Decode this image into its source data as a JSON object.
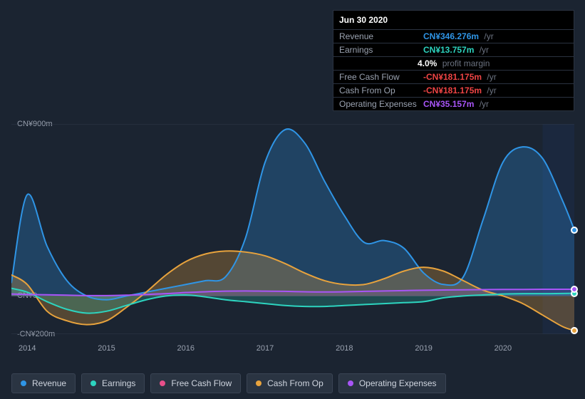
{
  "tooltip": {
    "date": "Jun 30 2020",
    "rows": [
      {
        "label": "Revenue",
        "value": "CN¥346.276m",
        "unit": "/yr",
        "color": "#2f95e6"
      },
      {
        "label": "Earnings",
        "value": "CN¥13.757m",
        "unit": "/yr",
        "color": "#2dd4bf"
      },
      {
        "label": "",
        "value": "4.0%",
        "unit": "profit margin",
        "color": "#ffffff"
      },
      {
        "label": "Free Cash Flow",
        "value": "-CN¥181.175m",
        "unit": "/yr",
        "color": "#ef4444"
      },
      {
        "label": "Cash From Op",
        "value": "-CN¥181.175m",
        "unit": "/yr",
        "color": "#ef4444"
      },
      {
        "label": "Operating Expenses",
        "value": "CN¥35.157m",
        "unit": "/yr",
        "color": "#a855f7"
      }
    ]
  },
  "chart": {
    "type": "area",
    "background_color": "#1b2431",
    "grid_color": "#323a49",
    "text_color": "#9aa2b0",
    "label_fontsize": 11,
    "xlim": [
      2013.8,
      2020.9
    ],
    "ylim": [
      -200,
      900
    ],
    "yticks": [
      {
        "v": 900,
        "label": "CN¥900m"
      },
      {
        "v": 0,
        "label": "CN¥0"
      },
      {
        "v": -200,
        "label": "-CN¥200m"
      }
    ],
    "xticks": [
      2014,
      2015,
      2016,
      2017,
      2018,
      2019,
      2020
    ],
    "x_values": [
      2013.8,
      2014.0,
      2014.25,
      2014.5,
      2014.75,
      2015.0,
      2015.25,
      2015.5,
      2015.75,
      2016.0,
      2016.25,
      2016.5,
      2016.75,
      2017.0,
      2017.25,
      2017.5,
      2017.75,
      2018.0,
      2018.25,
      2018.5,
      2018.75,
      2019.0,
      2019.25,
      2019.5,
      2019.75,
      2020.0,
      2020.25,
      2020.5,
      2020.75,
      2020.9
    ],
    "forecast_start_x": 2020.5,
    "forecast_overlay_color": "rgba(30,50,90,0.35)",
    "series": [
      {
        "name": "Revenue",
        "color": "#2f95e6",
        "fill_opacity": 0.28,
        "line_width": 2,
        "values": [
          70,
          530,
          260,
          80,
          0,
          -20,
          0,
          20,
          40,
          60,
          80,
          100,
          300,
          700,
          870,
          800,
          600,
          420,
          280,
          290,
          250,
          120,
          60,
          100,
          400,
          700,
          780,
          720,
          500,
          346
        ]
      },
      {
        "name": "Cash From Op",
        "color": "#e8a33d",
        "fill_opacity": 0.28,
        "line_width": 2,
        "values": [
          110,
          60,
          -80,
          -130,
          -150,
          -130,
          -60,
          20,
          110,
          180,
          220,
          235,
          230,
          210,
          170,
          120,
          80,
          60,
          60,
          90,
          130,
          150,
          130,
          80,
          30,
          0,
          -40,
          -100,
          -160,
          -181
        ]
      },
      {
        "name": "Earnings",
        "color": "#2dd4bf",
        "fill_opacity": 0.22,
        "line_width": 2,
        "values": [
          40,
          20,
          -30,
          -70,
          -90,
          -80,
          -50,
          -20,
          0,
          5,
          -5,
          -20,
          -30,
          -40,
          -50,
          -55,
          -55,
          -50,
          -45,
          -40,
          -35,
          -30,
          -10,
          0,
          5,
          10,
          12,
          12,
          13,
          14
        ]
      },
      {
        "name": "Free Cash Flow",
        "color": "#e84f8a",
        "fill_opacity": 0.0,
        "line_width": 0,
        "values": [
          110,
          60,
          -80,
          -130,
          -150,
          -130,
          -60,
          20,
          110,
          180,
          220,
          235,
          230,
          210,
          170,
          120,
          80,
          60,
          60,
          90,
          130,
          150,
          130,
          80,
          30,
          0,
          -40,
          -100,
          -160,
          -181
        ]
      },
      {
        "name": "Operating Expenses",
        "color": "#a855f7",
        "fill_opacity": 0.15,
        "line_width": 2,
        "values": [
          10,
          8,
          6,
          4,
          2,
          2,
          4,
          8,
          12,
          18,
          22,
          25,
          26,
          25,
          24,
          22,
          21,
          22,
          24,
          26,
          28,
          30,
          31,
          32,
          33,
          34,
          34,
          35,
          35,
          35
        ]
      }
    ],
    "hover_x": 2020.9,
    "markers": [
      {
        "series": "Revenue",
        "x": 2020.9,
        "y": 346,
        "color": "#2f95e6"
      },
      {
        "series": "Earnings",
        "x": 2020.9,
        "y": 14,
        "color": "#2dd4bf"
      },
      {
        "series": "Free Cash Flow",
        "x": 2020.9,
        "y": -181,
        "color": "#e84f8a"
      },
      {
        "series": "Cash From Op",
        "x": 2020.9,
        "y": -181,
        "color": "#e8a33d"
      },
      {
        "series": "Operating Expenses",
        "x": 2020.9,
        "y": 35,
        "color": "#a855f7"
      }
    ]
  },
  "legend": {
    "items": [
      {
        "label": "Revenue",
        "color": "#2f95e6"
      },
      {
        "label": "Earnings",
        "color": "#2dd4bf"
      },
      {
        "label": "Free Cash Flow",
        "color": "#e84f8a"
      },
      {
        "label": "Cash From Op",
        "color": "#e8a33d"
      },
      {
        "label": "Operating Expenses",
        "color": "#a855f7"
      }
    ],
    "item_bg": "#2a3442",
    "item_border": "#3a4454",
    "item_fontsize": 12
  }
}
